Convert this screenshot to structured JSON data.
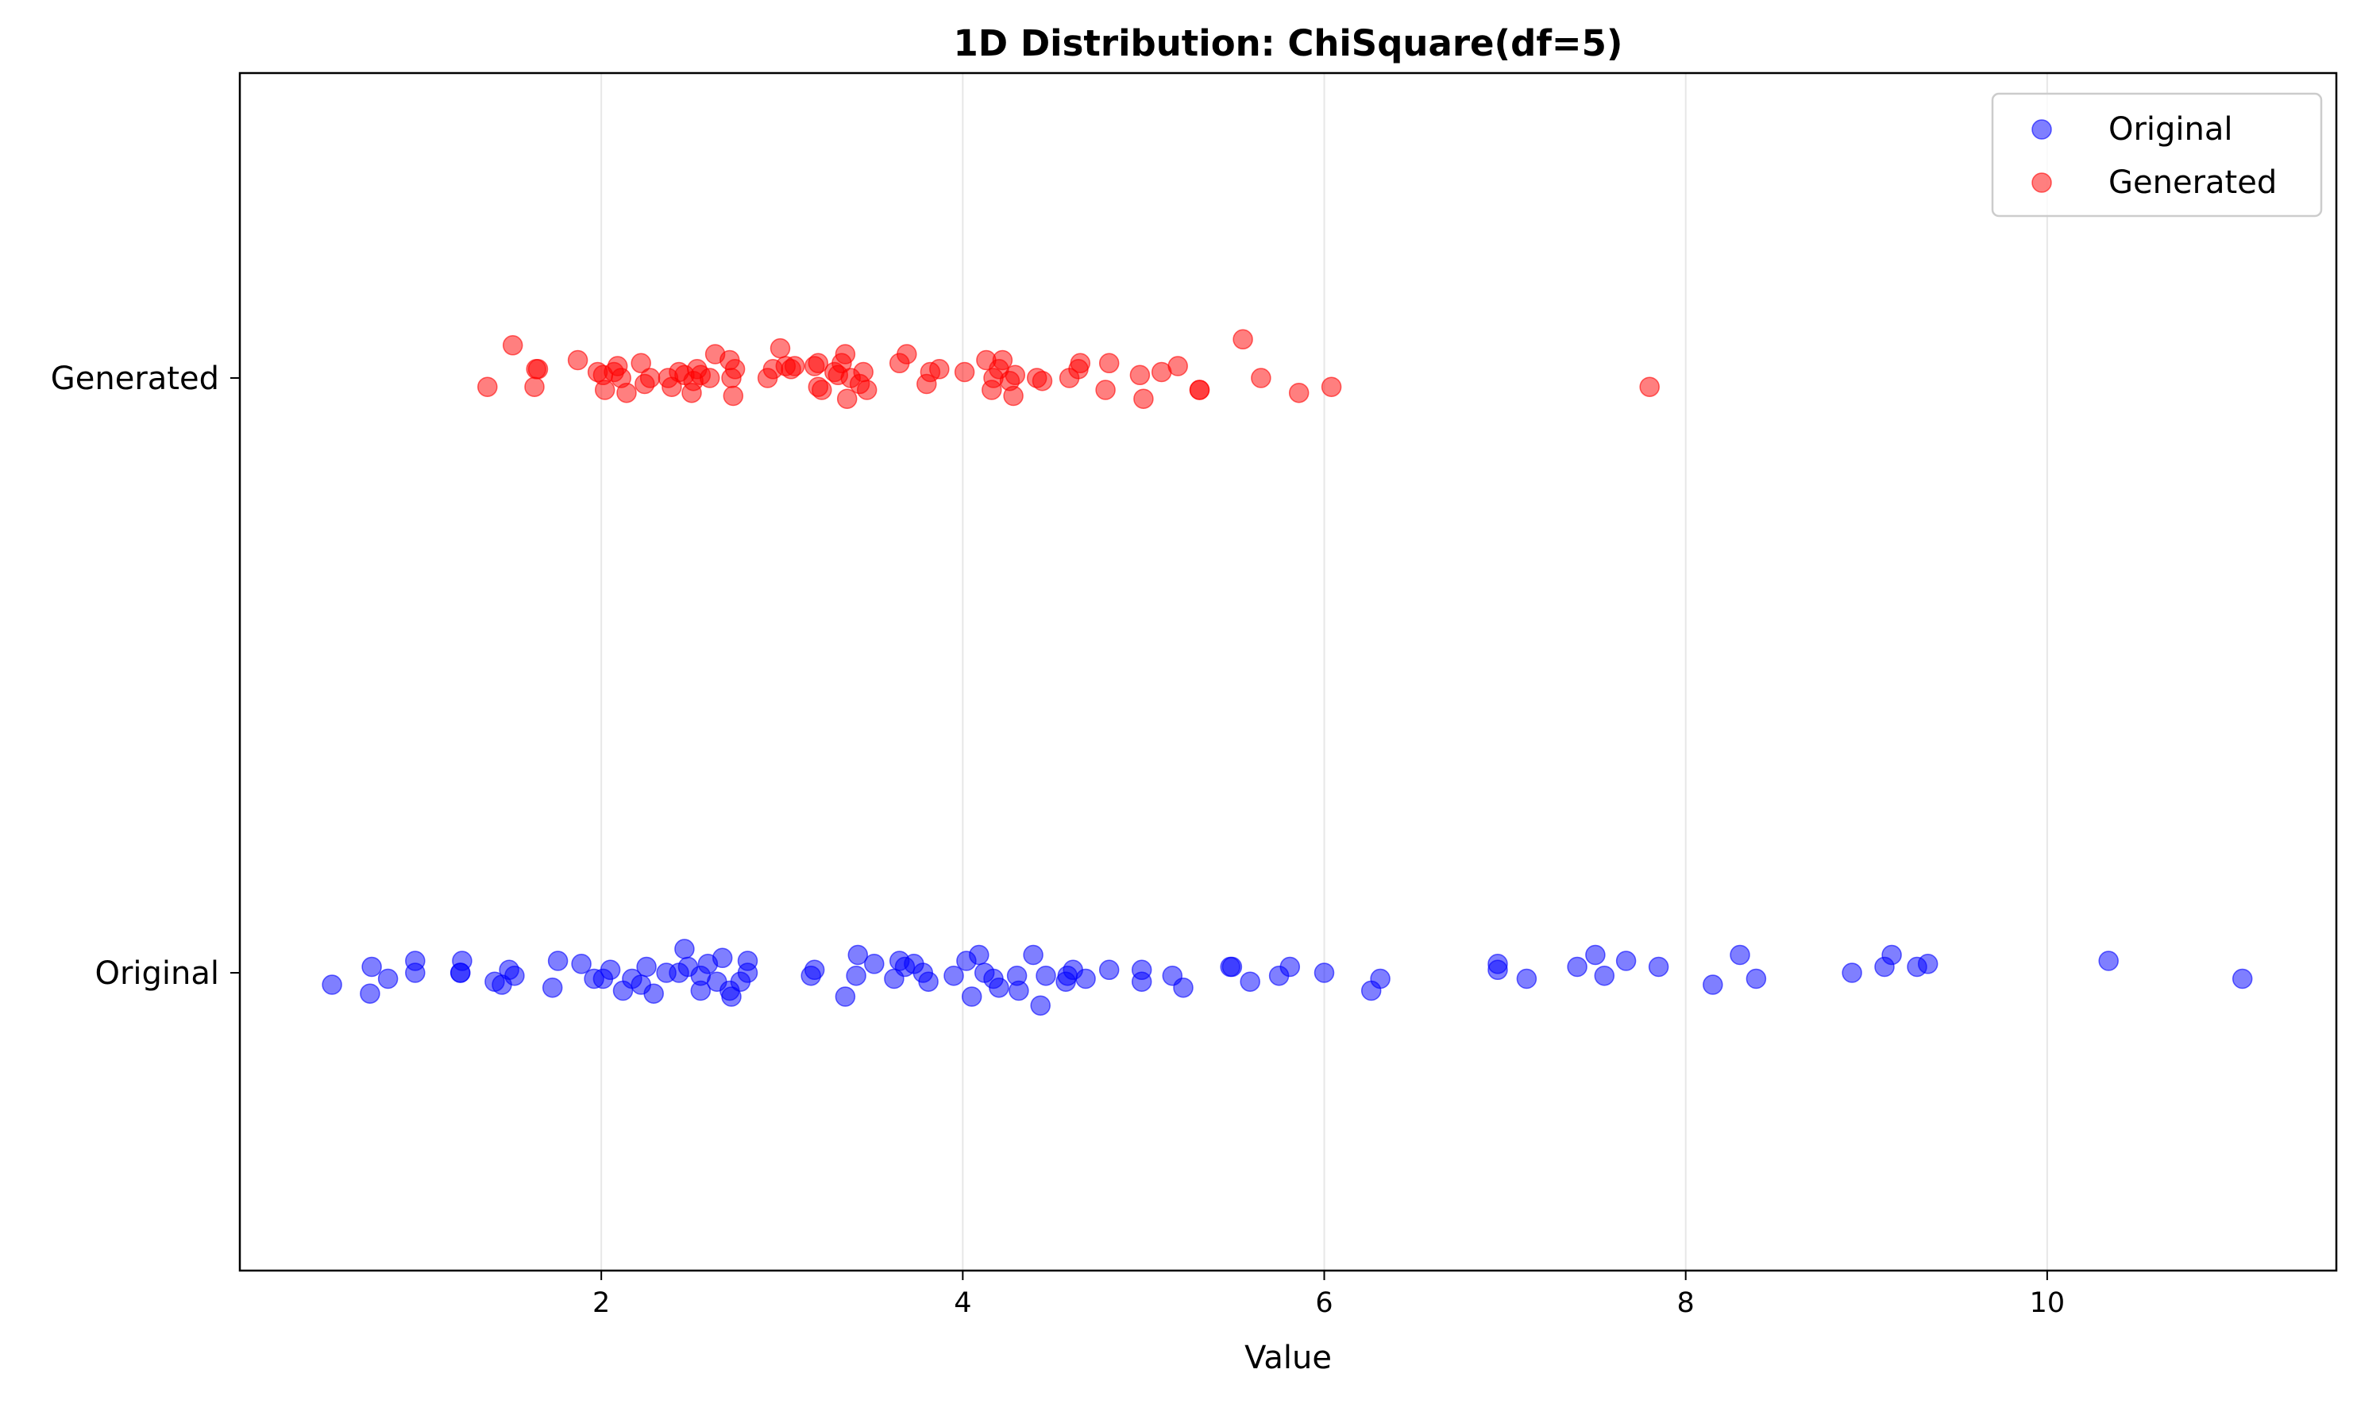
{
  "chart_data": {
    "type": "scatter",
    "title": "1D Distribution: ChiSquare(df=5)",
    "xlabel": "Value",
    "ylabel": "",
    "xlim": [
      0.0,
      11.6
    ],
    "xticks": [
      2,
      4,
      6,
      8,
      10
    ],
    "categories": [
      "Original",
      "Generated"
    ],
    "grid": "vertical",
    "legend": "top-right",
    "series": [
      {
        "name": "Original",
        "color": "#0000ff",
        "category": "Original",
        "points": [
          [
            0.51,
            -0.02
          ],
          [
            0.73,
            0.01
          ],
          [
            0.72,
            -0.035
          ],
          [
            0.82,
            -0.01
          ],
          [
            0.97,
            0.02
          ],
          [
            0.97,
            0.0
          ],
          [
            1.22,
            0.0
          ],
          [
            1.23,
            0.02
          ],
          [
            1.22,
            0.0
          ],
          [
            1.41,
            -0.015
          ],
          [
            1.45,
            -0.02
          ],
          [
            1.49,
            0.005
          ],
          [
            1.52,
            -0.005
          ],
          [
            1.73,
            -0.025
          ],
          [
            1.76,
            0.02
          ],
          [
            1.89,
            0.015
          ],
          [
            1.96,
            -0.01
          ],
          [
            2.01,
            -0.01
          ],
          [
            2.05,
            0.005
          ],
          [
            2.12,
            -0.03
          ],
          [
            2.17,
            -0.01
          ],
          [
            2.22,
            -0.02
          ],
          [
            2.25,
            0.01
          ],
          [
            2.29,
            -0.035
          ],
          [
            2.36,
            0.0
          ],
          [
            2.43,
            0.0
          ],
          [
            2.46,
            0.04
          ],
          [
            2.48,
            0.01
          ],
          [
            2.55,
            -0.03
          ],
          [
            2.55,
            -0.005
          ],
          [
            2.59,
            0.015
          ],
          [
            2.64,
            -0.015
          ],
          [
            2.67,
            0.025
          ],
          [
            2.71,
            -0.03
          ],
          [
            2.72,
            -0.04
          ],
          [
            2.77,
            -0.015
          ],
          [
            2.81,
            0.0
          ],
          [
            2.81,
            0.02
          ],
          [
            3.16,
            -0.005
          ],
          [
            3.18,
            0.005
          ],
          [
            3.35,
            -0.04
          ],
          [
            3.41,
            -0.005
          ],
          [
            3.42,
            0.03
          ],
          [
            3.51,
            0.015
          ],
          [
            3.62,
            -0.01
          ],
          [
            3.65,
            0.02
          ],
          [
            3.68,
            0.01
          ],
          [
            3.73,
            0.015
          ],
          [
            3.78,
            0.0
          ],
          [
            3.81,
            -0.015
          ],
          [
            3.95,
            -0.005
          ],
          [
            4.02,
            0.02
          ],
          [
            4.05,
            -0.04
          ],
          [
            4.09,
            0.03
          ],
          [
            4.12,
            0.0
          ],
          [
            4.17,
            -0.01
          ],
          [
            4.2,
            -0.025
          ],
          [
            4.3,
            -0.005
          ],
          [
            4.31,
            -0.03
          ],
          [
            4.39,
            0.03
          ],
          [
            4.43,
            -0.055
          ],
          [
            4.46,
            -0.005
          ],
          [
            4.57,
            -0.015
          ],
          [
            4.58,
            -0.005
          ],
          [
            4.61,
            0.005
          ],
          [
            4.68,
            -0.01
          ],
          [
            4.81,
            0.005
          ],
          [
            4.99,
            -0.015
          ],
          [
            4.99,
            0.005
          ],
          [
            5.16,
            -0.005
          ],
          [
            5.22,
            -0.025
          ],
          [
            5.48,
            0.01
          ],
          [
            5.49,
            0.01
          ],
          [
            5.59,
            -0.015
          ],
          [
            5.75,
            -0.005
          ],
          [
            5.81,
            0.01
          ],
          [
            6.0,
            0.0
          ],
          [
            6.26,
            -0.03
          ],
          [
            6.31,
            -0.01
          ],
          [
            6.96,
            0.005
          ],
          [
            6.96,
            0.015
          ],
          [
            7.12,
            -0.01
          ],
          [
            7.4,
            0.01
          ],
          [
            7.5,
            0.03
          ],
          [
            7.55,
            -0.005
          ],
          [
            7.67,
            0.02
          ],
          [
            7.85,
            0.01
          ],
          [
            8.15,
            -0.02
          ],
          [
            8.3,
            0.03
          ],
          [
            8.39,
            -0.01
          ],
          [
            8.92,
            0.0
          ],
          [
            9.1,
            0.01
          ],
          [
            9.14,
            0.03
          ],
          [
            9.28,
            0.01
          ],
          [
            9.34,
            0.015
          ],
          [
            10.34,
            0.02
          ],
          [
            11.08,
            -0.01
          ]
        ]
      },
      {
        "name": "Generated",
        "color": "#ff0000",
        "category": "Generated",
        "points": [
          [
            1.37,
            -0.015
          ],
          [
            1.51,
            0.055
          ],
          [
            1.63,
            -0.015
          ],
          [
            1.65,
            0.015
          ],
          [
            1.64,
            0.015
          ],
          [
            1.87,
            0.03
          ],
          [
            1.98,
            0.01
          ],
          [
            2.01,
            0.005
          ],
          [
            2.02,
            -0.02
          ],
          [
            2.07,
            0.01
          ],
          [
            2.09,
            0.02
          ],
          [
            2.11,
            0.0
          ],
          [
            2.14,
            -0.025
          ],
          [
            2.22,
            0.025
          ],
          [
            2.24,
            -0.01
          ],
          [
            2.27,
            0.0
          ],
          [
            2.37,
            0.0
          ],
          [
            2.39,
            -0.015
          ],
          [
            2.43,
            0.01
          ],
          [
            2.46,
            0.005
          ],
          [
            2.5,
            -0.025
          ],
          [
            2.51,
            -0.005
          ],
          [
            2.53,
            0.015
          ],
          [
            2.55,
            0.005
          ],
          [
            2.6,
            0.0
          ],
          [
            2.63,
            0.04
          ],
          [
            2.71,
            0.03
          ],
          [
            2.74,
            0.015
          ],
          [
            2.72,
            0.0
          ],
          [
            2.73,
            -0.03
          ],
          [
            2.92,
            0.0
          ],
          [
            2.95,
            0.015
          ],
          [
            2.99,
            0.05
          ],
          [
            3.02,
            0.02
          ],
          [
            3.05,
            0.015
          ],
          [
            3.07,
            0.02
          ],
          [
            3.18,
            0.02
          ],
          [
            3.2,
            0.025
          ],
          [
            3.2,
            -0.015
          ],
          [
            3.22,
            -0.02
          ],
          [
            3.29,
            0.01
          ],
          [
            3.31,
            0.005
          ],
          [
            3.33,
            0.025
          ],
          [
            3.35,
            0.04
          ],
          [
            3.36,
            -0.035
          ],
          [
            3.38,
            0.0
          ],
          [
            3.43,
            -0.01
          ],
          [
            3.45,
            0.01
          ],
          [
            3.47,
            -0.02
          ],
          [
            3.65,
            0.025
          ],
          [
            3.69,
            0.04
          ],
          [
            3.8,
            -0.01
          ],
          [
            3.82,
            0.01
          ],
          [
            3.87,
            0.015
          ],
          [
            4.01,
            0.01
          ],
          [
            4.13,
            0.03
          ],
          [
            4.17,
            0.0
          ],
          [
            4.16,
            -0.02
          ],
          [
            4.2,
            0.015
          ],
          [
            4.22,
            0.03
          ],
          [
            4.26,
            -0.005
          ],
          [
            4.28,
            -0.03
          ],
          [
            4.29,
            0.005
          ],
          [
            4.41,
            0.0
          ],
          [
            4.44,
            -0.005
          ],
          [
            4.59,
            0.0
          ],
          [
            4.64,
            0.015
          ],
          [
            4.65,
            0.025
          ],
          [
            4.79,
            -0.02
          ],
          [
            4.81,
            0.025
          ],
          [
            4.98,
            0.005
          ],
          [
            5.0,
            -0.035
          ],
          [
            5.1,
            0.01
          ],
          [
            5.19,
            0.02
          ],
          [
            5.31,
            -0.02
          ],
          [
            5.31,
            -0.02
          ],
          [
            5.55,
            0.065
          ],
          [
            5.65,
            0.0
          ],
          [
            5.86,
            -0.025
          ],
          [
            6.04,
            -0.015
          ],
          [
            7.8,
            -0.015
          ]
        ]
      }
    ]
  }
}
